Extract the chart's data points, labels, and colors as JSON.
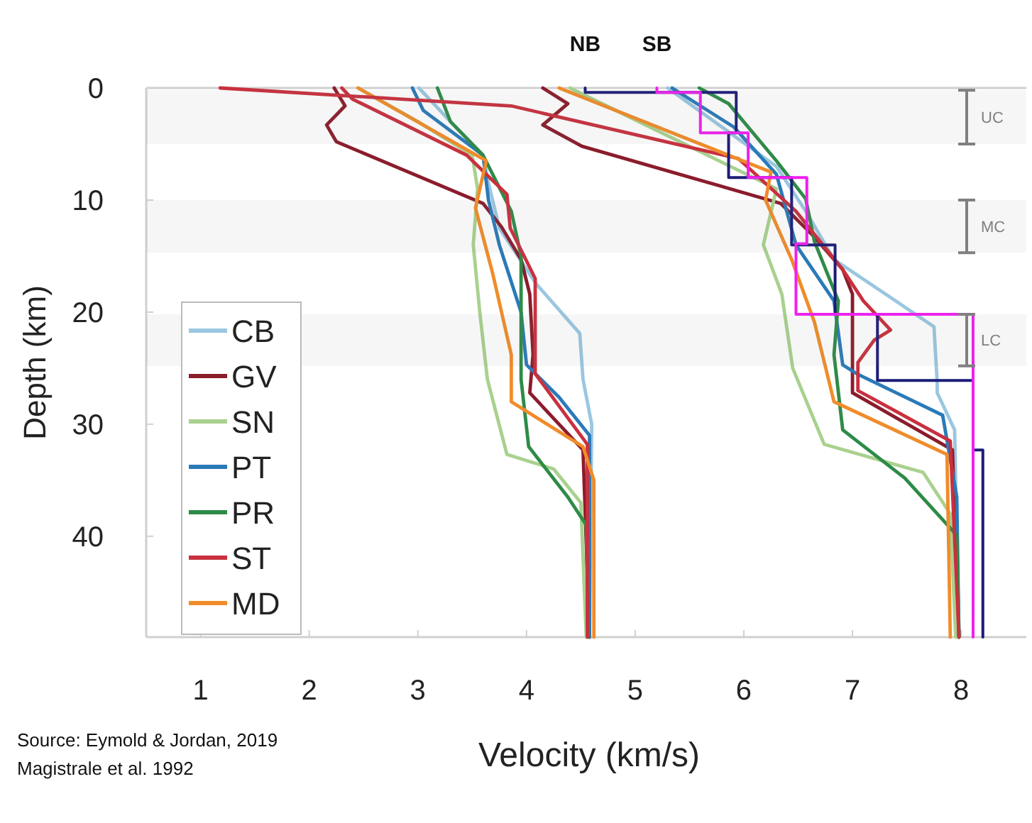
{
  "chart_data": {
    "type": "line",
    "xlabel": "Velocity (km/s)",
    "ylabel": "Depth (km)",
    "xlim": [
      0.5,
      8.6
    ],
    "ylim": [
      49,
      0
    ],
    "xticks": [
      1,
      2,
      3,
      4,
      5,
      6,
      7,
      8
    ],
    "yticks": [
      0,
      10,
      20,
      30,
      40
    ],
    "grid": false,
    "legend": "left",
    "marker": "none",
    "line_style": "solid",
    "series": [
      {
        "name": "CB",
        "color": "#9ac7e0",
        "x": [
          3.01,
          3.3,
          3.6,
          3.65,
          3.75,
          4.09,
          4.49,
          4.52,
          4.6,
          4.58
        ],
        "values": [
          0,
          3,
          6,
          8.5,
          12.5,
          17.5,
          21.9,
          26,
          30,
          49
        ]
      },
      {
        "name": "GV",
        "color": "#8b1c2c",
        "x": [
          2.23,
          2.33,
          2.16,
          2.25,
          3.6,
          3.77,
          3.95,
          4.03,
          4.06,
          4.03,
          4.52,
          4.58
        ],
        "values": [
          0,
          1.6,
          3.3,
          4.8,
          10.3,
          12.4,
          15.3,
          18.4,
          23.8,
          27.2,
          32.3,
          49
        ]
      },
      {
        "name": "SN",
        "color": "#a9d18e",
        "x": [
          2.45,
          3.0,
          3.5,
          3.55,
          3.51,
          3.57,
          3.64,
          3.82,
          4.25,
          4.5,
          4.55
        ],
        "values": [
          0,
          3,
          6,
          9,
          14,
          20,
          26,
          32.7,
          34,
          37,
          49
        ]
      },
      {
        "name": "PT",
        "color": "#2a7ab8",
        "x": [
          2.95,
          3.05,
          3.6,
          3.65,
          3.75,
          3.95,
          4.0,
          4.3,
          4.58,
          4.58
        ],
        "values": [
          0,
          2,
          6,
          10,
          14,
          20,
          24.7,
          27.6,
          31,
          49
        ]
      },
      {
        "name": "PR",
        "color": "#2e8b47",
        "x": [
          3.18,
          3.3,
          3.6,
          3.86,
          3.95,
          3.95,
          3.95,
          4.02,
          4.38,
          4.55,
          4.57
        ],
        "values": [
          0,
          3,
          6,
          11,
          15,
          24,
          26,
          32,
          36.5,
          39,
          49
        ]
      },
      {
        "name": "ST",
        "color": "#c9303e",
        "x": [
          2.3,
          2.4,
          3.45,
          3.82,
          3.85,
          4.08,
          4.08,
          4.56,
          4.56
        ],
        "values": [
          0,
          1,
          6,
          9.5,
          12.5,
          17,
          25.5,
          31.8,
          49
        ]
      },
      {
        "name": "MD",
        "color": "#f08c2a",
        "x": [
          2.45,
          3.63,
          3.53,
          3.69,
          3.86,
          3.86,
          4.52,
          4.62,
          4.62
        ],
        "values": [
          0,
          6.5,
          10.7,
          16.6,
          23.8,
          28,
          32,
          35,
          49
        ]
      },
      {
        "color": "#9ac7e0",
        "x": [
          5.3,
          6.3,
          6.57,
          6.83,
          7.75,
          7.78,
          7.78,
          7.94,
          7.98
        ],
        "values": [
          0,
          7,
          11,
          15.3,
          21.3,
          26.3,
          27.2,
          30.5,
          49
        ]
      },
      {
        "color": "#8b1c2c",
        "x": [
          4.15,
          4.38,
          4.15,
          4.51,
          6.34,
          6.65,
          6.91,
          7.0,
          7.0,
          7.92,
          7.98
        ],
        "values": [
          0,
          1.4,
          3.3,
          5.2,
          10.3,
          13.3,
          16.2,
          18.4,
          27.2,
          32.3,
          49
        ]
      },
      {
        "color": "#a9d18e",
        "x": [
          4.4,
          6.3,
          6.18,
          6.35,
          6.45,
          6.74,
          7.65,
          7.9,
          7.95
        ],
        "values": [
          0,
          9,
          14,
          18.4,
          25,
          31.8,
          34.3,
          38,
          49
        ]
      },
      {
        "color": "#2a7ab8",
        "x": [
          5.34,
          5.91,
          6.3,
          6.48,
          6.83,
          6.91,
          7.04,
          7.83,
          7.96,
          7.98
        ],
        "values": [
          0,
          3.5,
          7.7,
          14,
          19,
          24.7,
          25.5,
          29.2,
          36.5,
          49
        ]
      },
      {
        "color": "#2e8b47",
        "x": [
          5.59,
          5.86,
          6.3,
          6.57,
          6.65,
          6.87,
          6.83,
          6.91,
          7.48,
          7.96,
          7.98
        ],
        "values": [
          0,
          1.4,
          6.5,
          9.9,
          13.7,
          19,
          23.8,
          30.5,
          34.8,
          39.9,
          49
        ]
      },
      {
        "color": "#c9303e",
        "x": [
          1.18,
          3.86,
          5.95,
          6.48,
          6.91,
          7.1,
          7.35,
          7.2,
          7.05,
          7.05,
          7.9,
          7.98
        ],
        "values": [
          0,
          1.6,
          6.3,
          11,
          16.2,
          19,
          21.6,
          22.5,
          24.5,
          27,
          31.5,
          49
        ]
      },
      {
        "color": "#f08c2a",
        "x": [
          4.3,
          6.25,
          6.2,
          6.44,
          6.65,
          6.83,
          7.87,
          7.9
        ],
        "values": [
          0,
          7.5,
          10,
          15.3,
          20.9,
          28,
          32.7,
          49
        ]
      },
      {
        "name": "NB",
        "type": "step",
        "color": "#1c1c78",
        "x": [
          4.54,
          5.93,
          5.86,
          6.44,
          6.84,
          7.23,
          8.11,
          8.2,
          8.2
        ],
        "values": [
          0,
          0.4,
          4,
          8,
          14,
          20.2,
          26.1,
          32.3,
          49
        ]
      },
      {
        "name": "SB",
        "type": "step",
        "color": "#f01ff0",
        "x": [
          5.2,
          5.6,
          6.04,
          6.58,
          6.48,
          8.11,
          8.11
        ],
        "values": [
          0,
          0.4,
          4,
          8,
          13.9,
          20.2,
          49
        ]
      }
    ],
    "bands": [
      {
        "axis": "y",
        "from": 0.2,
        "to": 5,
        "label": "UC",
        "color": "#808080"
      },
      {
        "axis": "y",
        "from": 10,
        "to": 14.7,
        "label": "MC",
        "color": "#808080"
      },
      {
        "axis": "y",
        "from": 20.2,
        "to": 24.8,
        "label": "LC",
        "color": "#808080"
      }
    ],
    "annotations": [
      "Source: Eymold & Jordan, 2019",
      "Magistrale et al. 1992"
    ]
  }
}
